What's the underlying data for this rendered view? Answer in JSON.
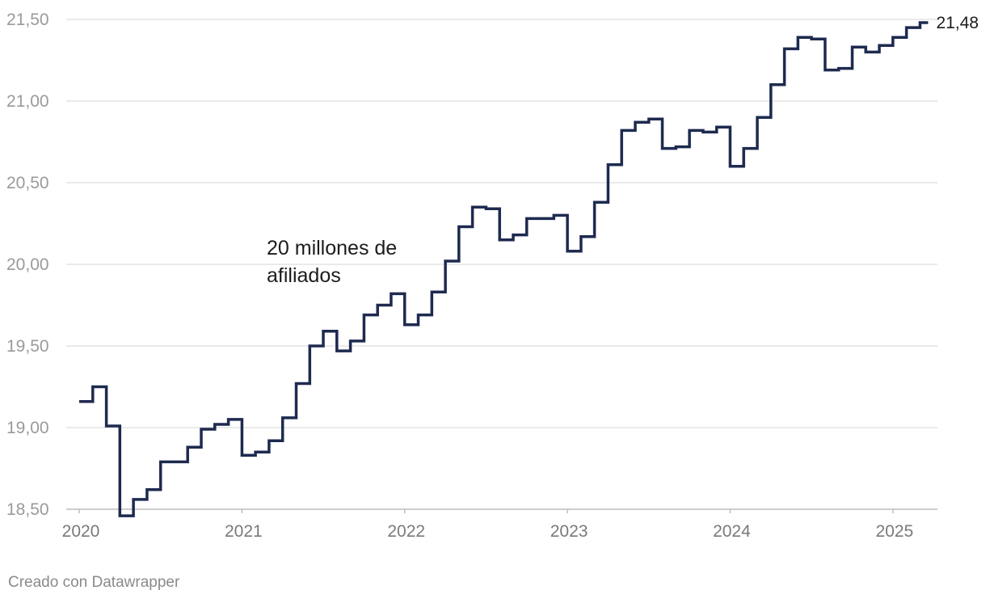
{
  "chart_data": {
    "type": "line",
    "step": true,
    "x_start": "2020-01",
    "x_interval": "month",
    "x_ticks": [
      "2020",
      "2021",
      "2022",
      "2023",
      "2024",
      "2025"
    ],
    "y_ticks": [
      18.5,
      19.0,
      19.5,
      20.0,
      20.5,
      21.0,
      21.5
    ],
    "y_tick_labels": [
      "18,50",
      "19,00",
      "19,50",
      "20,00",
      "20,50",
      "21,00",
      "21,50"
    ],
    "ylim": [
      18.5,
      21.5
    ],
    "grid": true,
    "line_color": "#1e2a4f",
    "series": [
      {
        "values": [
          19.16,
          19.25,
          19.01,
          18.46,
          18.56,
          18.62,
          18.79,
          18.79,
          18.88,
          18.99,
          19.02,
          19.05,
          18.83,
          18.85,
          18.92,
          19.06,
          19.27,
          19.5,
          19.59,
          19.47,
          19.53,
          19.69,
          19.75,
          19.82,
          19.63,
          19.69,
          19.83,
          20.02,
          20.23,
          20.35,
          20.34,
          20.15,
          20.18,
          20.28,
          20.28,
          20.3,
          20.08,
          20.17,
          20.38,
          20.61,
          20.82,
          20.87,
          20.89,
          20.71,
          20.72,
          20.82,
          20.81,
          20.84,
          20.6,
          20.71,
          20.9,
          21.1,
          21.32,
          21.39,
          21.38,
          21.19,
          21.2,
          21.33,
          21.3,
          21.34,
          21.39,
          21.45,
          21.48
        ]
      }
    ],
    "end_label": "21,48",
    "annotation": {
      "lines": [
        "20 millones de",
        "afiliados"
      ]
    }
  },
  "footer": {
    "credit": "Creado con Datawrapper"
  }
}
